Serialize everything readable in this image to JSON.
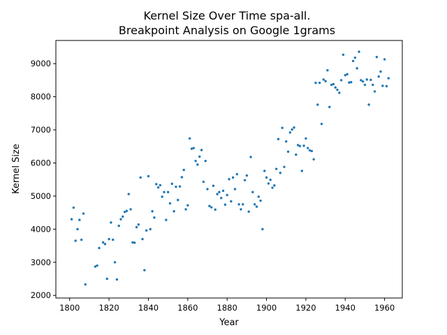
{
  "chart_data": {
    "type": "scatter",
    "title": "Kernel Size Over Time spa-all.",
    "subtitle": "Breakpoint Analysis on Google 1grams",
    "xlabel": "Year",
    "ylabel": "Kernel Size",
    "xlim": [
      1793,
      1969
    ],
    "ylim": [
      1920,
      9700
    ],
    "xticks": [
      "1800",
      "1820",
      "1840",
      "1860",
      "1880",
      "1900",
      "1920",
      "1940",
      "1960"
    ],
    "yticks": [
      "2000",
      "3000",
      "4000",
      "5000",
      "6000",
      "7000",
      "8000",
      "9000"
    ],
    "grid": false,
    "color": "#1f77b4",
    "points": [
      [
        1801,
        4300
      ],
      [
        1802,
        4650
      ],
      [
        1803,
        3650
      ],
      [
        1804,
        4000
      ],
      [
        1805,
        4280
      ],
      [
        1806,
        3680
      ],
      [
        1807,
        4470
      ],
      [
        1808,
        2330
      ],
      [
        1813,
        2870
      ],
      [
        1814,
        2900
      ],
      [
        1815,
        3430
      ],
      [
        1817,
        3600
      ],
      [
        1818,
        3550
      ],
      [
        1819,
        2500
      ],
      [
        1820,
        3700
      ],
      [
        1821,
        4200
      ],
      [
        1822,
        3680
      ],
      [
        1823,
        3000
      ],
      [
        1824,
        2480
      ],
      [
        1825,
        4100
      ],
      [
        1826,
        4300
      ],
      [
        1827,
        4380
      ],
      [
        1828,
        4520
      ],
      [
        1829,
        4550
      ],
      [
        1830,
        5060
      ],
      [
        1831,
        4600
      ],
      [
        1832,
        3600
      ],
      [
        1833,
        3590
      ],
      [
        1834,
        4060
      ],
      [
        1835,
        4140
      ],
      [
        1836,
        5560
      ],
      [
        1837,
        3700
      ],
      [
        1838,
        2760
      ],
      [
        1839,
        3960
      ],
      [
        1840,
        5600
      ],
      [
        1841,
        4000
      ],
      [
        1842,
        4540
      ],
      [
        1843,
        4350
      ],
      [
        1844,
        5360
      ],
      [
        1845,
        5260
      ],
      [
        1846,
        5330
      ],
      [
        1847,
        4980
      ],
      [
        1848,
        5120
      ],
      [
        1849,
        4280
      ],
      [
        1850,
        5120
      ],
      [
        1851,
        4780
      ],
      [
        1852,
        5370
      ],
      [
        1853,
        4540
      ],
      [
        1854,
        5280
      ],
      [
        1855,
        4880
      ],
      [
        1856,
        5290
      ],
      [
        1857,
        5570
      ],
      [
        1858,
        5790
      ],
      [
        1859,
        4600
      ],
      [
        1860,
        4720
      ],
      [
        1861,
        6740
      ],
      [
        1862,
        6430
      ],
      [
        1863,
        6450
      ],
      [
        1864,
        6060
      ],
      [
        1865,
        5950
      ],
      [
        1866,
        6190
      ],
      [
        1867,
        6390
      ],
      [
        1868,
        5430
      ],
      [
        1869,
        6060
      ],
      [
        1870,
        5210
      ],
      [
        1871,
        4700
      ],
      [
        1872,
        4660
      ],
      [
        1873,
        5310
      ],
      [
        1874,
        4590
      ],
      [
        1875,
        5060
      ],
      [
        1876,
        5120
      ],
      [
        1877,
        4940
      ],
      [
        1878,
        5160
      ],
      [
        1879,
        4740
      ],
      [
        1880,
        5030
      ],
      [
        1881,
        5510
      ],
      [
        1882,
        4840
      ],
      [
        1883,
        5560
      ],
      [
        1884,
        5210
      ],
      [
        1885,
        5660
      ],
      [
        1886,
        4750
      ],
      [
        1887,
        4600
      ],
      [
        1888,
        4750
      ],
      [
        1889,
        5480
      ],
      [
        1890,
        5620
      ],
      [
        1891,
        4530
      ],
      [
        1892,
        6180
      ],
      [
        1893,
        5120
      ],
      [
        1894,
        4750
      ],
      [
        1895,
        4680
      ],
      [
        1896,
        4980
      ],
      [
        1897,
        4860
      ],
      [
        1898,
        4000
      ],
      [
        1899,
        5760
      ],
      [
        1900,
        5560
      ],
      [
        1901,
        5380
      ],
      [
        1902,
        5490
      ],
      [
        1903,
        5250
      ],
      [
        1904,
        5320
      ],
      [
        1905,
        5820
      ],
      [
        1906,
        6720
      ],
      [
        1907,
        5700
      ],
      [
        1908,
        7060
      ],
      [
        1909,
        5880
      ],
      [
        1910,
        6650
      ],
      [
        1911,
        6340
      ],
      [
        1912,
        6920
      ],
      [
        1913,
        7010
      ],
      [
        1914,
        7070
      ],
      [
        1915,
        6250
      ],
      [
        1916,
        6540
      ],
      [
        1917,
        6510
      ],
      [
        1918,
        5760
      ],
      [
        1919,
        6520
      ],
      [
        1920,
        6740
      ],
      [
        1921,
        6450
      ],
      [
        1922,
        6380
      ],
      [
        1923,
        6360
      ],
      [
        1924,
        6110
      ],
      [
        1925,
        8420
      ],
      [
        1926,
        7760
      ],
      [
        1927,
        8420
      ],
      [
        1928,
        7180
      ],
      [
        1929,
        8520
      ],
      [
        1930,
        8470
      ],
      [
        1931,
        8800
      ],
      [
        1932,
        7690
      ],
      [
        1933,
        8360
      ],
      [
        1934,
        8380
      ],
      [
        1935,
        8280
      ],
      [
        1936,
        8210
      ],
      [
        1937,
        8120
      ],
      [
        1938,
        8500
      ],
      [
        1939,
        9270
      ],
      [
        1940,
        8650
      ],
      [
        1941,
        8680
      ],
      [
        1942,
        8430
      ],
      [
        1943,
        8440
      ],
      [
        1944,
        9080
      ],
      [
        1945,
        9180
      ],
      [
        1946,
        8860
      ],
      [
        1947,
        9360
      ],
      [
        1948,
        8500
      ],
      [
        1949,
        8460
      ],
      [
        1950,
        8360
      ],
      [
        1951,
        8520
      ],
      [
        1952,
        7760
      ],
      [
        1953,
        8510
      ],
      [
        1954,
        8360
      ],
      [
        1955,
        8160
      ],
      [
        1956,
        9200
      ],
      [
        1957,
        8610
      ],
      [
        1958,
        8760
      ],
      [
        1959,
        8330
      ],
      [
        1960,
        9130
      ],
      [
        1961,
        8320
      ],
      [
        1962,
        8560
      ]
    ]
  }
}
